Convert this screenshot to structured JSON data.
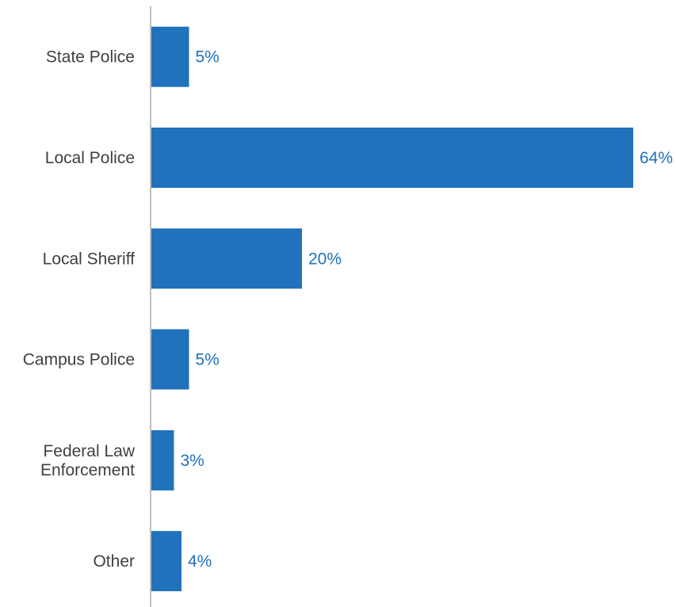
{
  "chart_data": {
    "type": "bar",
    "orientation": "horizontal",
    "categories": [
      [
        "State Police"
      ],
      [
        "Local Police"
      ],
      [
        "Local Sheriff"
      ],
      [
        "Campus Police"
      ],
      [
        "Federal Law",
        "Enforcement"
      ],
      [
        "Other"
      ]
    ],
    "values": [
      5,
      64,
      20,
      5,
      3,
      4
    ],
    "value_labels": [
      "5%",
      "64%",
      "20%",
      "5%",
      "3%",
      "4%"
    ],
    "title": "",
    "xlabel": "",
    "ylabel": "",
    "xlim": [
      0,
      64
    ],
    "grid": false,
    "legend": "none",
    "colors": {
      "bar": "#1f72bb",
      "value_label": "#1f72bb",
      "category_label": "#404040",
      "axis_line": "#bfbfbf"
    }
  }
}
